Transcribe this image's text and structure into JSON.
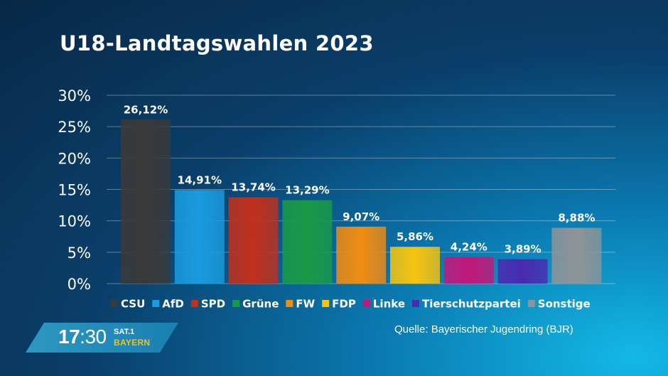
{
  "title": "U18-Landtagswahlen 2023",
  "source": "Quelle: Bayerischer Jugendring (BJR)",
  "logo": {
    "time_hours": "17",
    "time_colon": ":",
    "time_minutes": "30",
    "channel": "SAT.1",
    "region": "BAYERN"
  },
  "chart_data": {
    "type": "bar",
    "title": "U18-Landtagswahlen 2023",
    "xlabel": "",
    "ylabel": "",
    "ylim": [
      0,
      30
    ],
    "yticks": [
      0,
      5,
      10,
      15,
      20,
      25,
      30
    ],
    "ytick_labels": [
      "0%",
      "5%",
      "10%",
      "15%",
      "20%",
      "25%",
      "30%"
    ],
    "grid": true,
    "legend_position": "bottom",
    "categories": [
      "CSU",
      "AfD",
      "SPD",
      "Grüne",
      "FW",
      "FDP",
      "Linke",
      "Tierschutzpartei",
      "Sonstige"
    ],
    "values": [
      26.12,
      14.91,
      13.74,
      13.29,
      9.07,
      5.86,
      4.24,
      3.89,
      8.88
    ],
    "value_labels": [
      "26,12%",
      "14,91%",
      "13,74%",
      "13,29%",
      "9,07%",
      "5,86%",
      "4,24%",
      "3,89%",
      "8,88%"
    ],
    "colors": [
      "#3a3a3a",
      "#1a9be0",
      "#c0301e",
      "#1a9a48",
      "#f08c12",
      "#f5c410",
      "#c2187a",
      "#4a2ab0",
      "#8e9498"
    ]
  }
}
